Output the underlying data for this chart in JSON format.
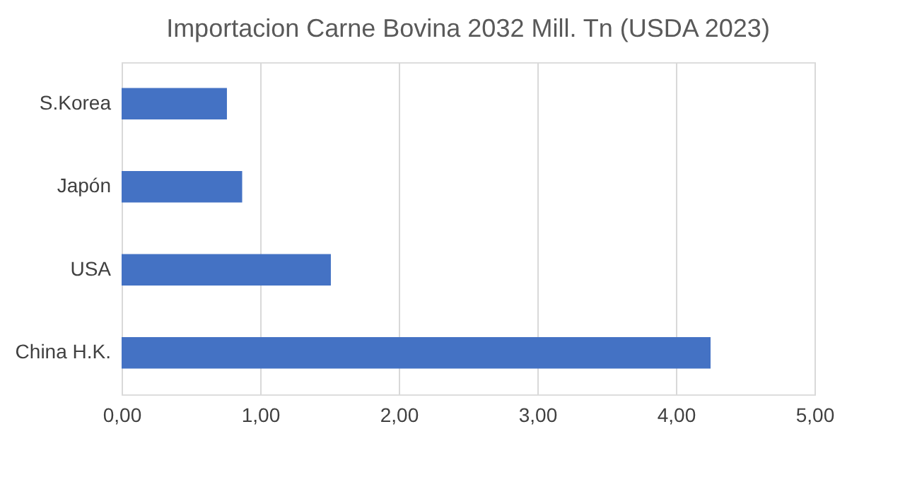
{
  "chart_data": {
    "type": "bar",
    "orientation": "horizontal",
    "title": "Importacion Carne Bovina 2032 Mill. Tn  (USDA 2023)",
    "categories": [
      "S.Korea",
      "Japón",
      "USA",
      "China H.K."
    ],
    "values": [
      0.76,
      0.87,
      1.51,
      4.25
    ],
    "color": "#4472c4",
    "xlim": [
      0,
      5
    ],
    "xticks": [
      {
        "value": 0,
        "label": "0,00"
      },
      {
        "value": 1,
        "label": "1,00"
      },
      {
        "value": 2,
        "label": "2,00"
      },
      {
        "value": 3,
        "label": "3,00"
      },
      {
        "value": 4,
        "label": "4,00"
      },
      {
        "value": 5,
        "label": "5,00"
      }
    ],
    "grid": "x"
  }
}
